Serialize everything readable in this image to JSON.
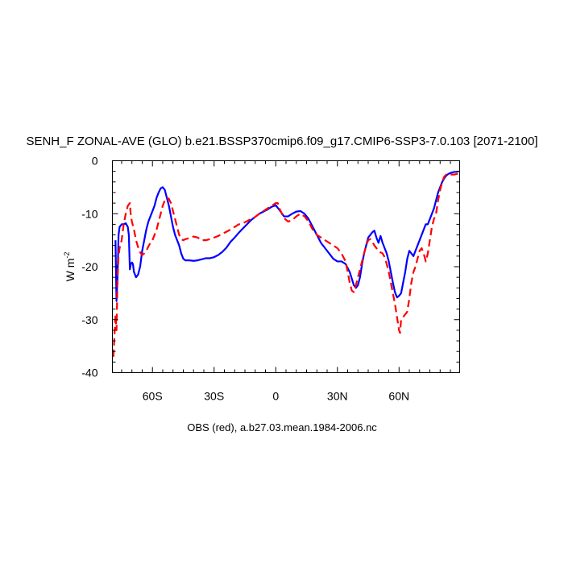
{
  "chart_data": {
    "type": "line",
    "title": "SENH_F ZONAL-AVE (GLO) b.e21.BSSP370cmip6.f09_g17.CMIP6-SSP3-7.0.103 [2071-2100]",
    "xlabel": "OBS (red), a.b27.03.mean.1984-2006.nc",
    "ylabel": "W m",
    "ylabel_sup": "-2",
    "xlim": [
      -90,
      90
    ],
    "ylim": [
      -40,
      0
    ],
    "xticks": [
      {
        "value": -60,
        "label": "60S"
      },
      {
        "value": -30,
        "label": "30S"
      },
      {
        "value": 0,
        "label": "0"
      },
      {
        "value": 30,
        "label": "30N"
      },
      {
        "value": 60,
        "label": "60N"
      }
    ],
    "yticks": [
      {
        "value": 0,
        "label": "0"
      },
      {
        "value": -10,
        "label": "-10"
      },
      {
        "value": -20,
        "label": "-20"
      },
      {
        "value": -30,
        "label": "-30"
      },
      {
        "value": -40,
        "label": "-40"
      }
    ],
    "series": [
      {
        "color": "#0000ff",
        "dash": "solid",
        "points": [
          [
            -78,
            -15
          ],
          [
            -77.5,
            -26.5
          ],
          [
            -77,
            -22
          ],
          [
            -76.5,
            -14
          ],
          [
            -76,
            -12.5
          ],
          [
            -75,
            -12
          ],
          [
            -74,
            -12
          ],
          [
            -73,
            -11.8
          ],
          [
            -72,
            -12.5
          ],
          [
            -71.5,
            -14
          ],
          [
            -71,
            -20.5
          ],
          [
            -70.5,
            -19.5
          ],
          [
            -70,
            -19.2
          ],
          [
            -69.5,
            -19.5
          ],
          [
            -69,
            -21
          ],
          [
            -68,
            -22
          ],
          [
            -67,
            -21.5
          ],
          [
            -66,
            -20
          ],
          [
            -65,
            -17
          ],
          [
            -64,
            -15
          ],
          [
            -63,
            -13
          ],
          [
            -62,
            -11.5
          ],
          [
            -61,
            -10.5
          ],
          [
            -60,
            -9.5
          ],
          [
            -59,
            -8.5
          ],
          [
            -58,
            -7
          ],
          [
            -57,
            -6
          ],
          [
            -56,
            -5.2
          ],
          [
            -55,
            -5
          ],
          [
            -54,
            -5.5
          ],
          [
            -53,
            -7
          ],
          [
            -52,
            -8.5
          ],
          [
            -51,
            -10.5
          ],
          [
            -50,
            -12.5
          ],
          [
            -49,
            -14
          ],
          [
            -48,
            -15
          ],
          [
            -47,
            -16
          ],
          [
            -46,
            -17.5
          ],
          [
            -45,
            -18.5
          ],
          [
            -44,
            -18.8
          ],
          [
            -42,
            -18.8
          ],
          [
            -40,
            -18.9
          ],
          [
            -38,
            -18.8
          ],
          [
            -36,
            -18.6
          ],
          [
            -34,
            -18.4
          ],
          [
            -32,
            -18.4
          ],
          [
            -30,
            -18.2
          ],
          [
            -28,
            -17.8
          ],
          [
            -26,
            -17.2
          ],
          [
            -24,
            -16.4
          ],
          [
            -22,
            -15.3
          ],
          [
            -20,
            -14.5
          ],
          [
            -18,
            -13.6
          ],
          [
            -16,
            -12.8
          ],
          [
            -14,
            -12
          ],
          [
            -12,
            -11.2
          ],
          [
            -10,
            -10.6
          ],
          [
            -8,
            -10
          ],
          [
            -6,
            -9.6
          ],
          [
            -4,
            -9.2
          ],
          [
            -2,
            -8.7
          ],
          [
            0,
            -8.4
          ],
          [
            2,
            -9.4
          ],
          [
            4,
            -10.5
          ],
          [
            6,
            -10.5
          ],
          [
            8,
            -10
          ],
          [
            10,
            -9.6
          ],
          [
            12,
            -9.5
          ],
          [
            14,
            -10
          ],
          [
            16,
            -11
          ],
          [
            18,
            -12.5
          ],
          [
            20,
            -14
          ],
          [
            22,
            -15.5
          ],
          [
            24,
            -16.5
          ],
          [
            26,
            -17.5
          ],
          [
            28,
            -18.5
          ],
          [
            30,
            -19
          ],
          [
            32,
            -19
          ],
          [
            34,
            -19.5
          ],
          [
            36,
            -21
          ],
          [
            38,
            -23.5
          ],
          [
            39,
            -24
          ],
          [
            40,
            -23.5
          ],
          [
            41,
            -22
          ],
          [
            42,
            -19.5
          ],
          [
            43,
            -17.5
          ],
          [
            44,
            -16
          ],
          [
            45,
            -14.5
          ],
          [
            46,
            -14
          ],
          [
            47,
            -13.5
          ],
          [
            48,
            -13.2
          ],
          [
            49,
            -14.5
          ],
          [
            50,
            -15.5
          ],
          [
            51,
            -14.2
          ],
          [
            52,
            -15.5
          ],
          [
            53,
            -16.5
          ],
          [
            54,
            -17.5
          ],
          [
            55,
            -19
          ],
          [
            56,
            -21
          ],
          [
            57,
            -23
          ],
          [
            58,
            -24.8
          ],
          [
            59,
            -25.8
          ],
          [
            60,
            -25.5
          ],
          [
            61,
            -25
          ],
          [
            62,
            -23
          ],
          [
            63,
            -21
          ],
          [
            64,
            -18.5
          ],
          [
            65,
            -17
          ],
          [
            66,
            -17.5
          ],
          [
            67,
            -18
          ],
          [
            68,
            -17
          ],
          [
            69,
            -16
          ],
          [
            70,
            -15
          ],
          [
            71,
            -14
          ],
          [
            72,
            -13
          ],
          [
            73,
            -12
          ],
          [
            74,
            -12
          ],
          [
            75,
            -11
          ],
          [
            76,
            -10
          ],
          [
            77,
            -9
          ],
          [
            78,
            -7.5
          ],
          [
            79,
            -6
          ],
          [
            80,
            -5
          ],
          [
            81,
            -4
          ],
          [
            82,
            -3.3
          ],
          [
            83,
            -2.8
          ],
          [
            84,
            -2.5
          ],
          [
            85,
            -2.3
          ],
          [
            86,
            -2.2
          ],
          [
            87,
            -2.1
          ],
          [
            88,
            -2.1
          ],
          [
            89,
            -2
          ]
        ]
      },
      {
        "color": "#ff0000",
        "dash": "dashed",
        "points": [
          [
            -79,
            -37
          ],
          [
            -78.5,
            -33
          ],
          [
            -78,
            -29
          ],
          [
            -77.5,
            -32
          ],
          [
            -77,
            -22
          ],
          [
            -76.5,
            -18
          ],
          [
            -76,
            -16.5
          ],
          [
            -75,
            -15
          ],
          [
            -74,
            -12
          ],
          [
            -73,
            -10
          ],
          [
            -72,
            -8.5
          ],
          [
            -71,
            -8
          ],
          [
            -70.5,
            -10.5
          ],
          [
            -70,
            -11.5
          ],
          [
            -69,
            -13
          ],
          [
            -68,
            -15
          ],
          [
            -67,
            -16.3
          ],
          [
            -66,
            -17.3
          ],
          [
            -65,
            -17.8
          ],
          [
            -64,
            -17.5
          ],
          [
            -63,
            -17
          ],
          [
            -62,
            -16.2
          ],
          [
            -61,
            -15.5
          ],
          [
            -60,
            -15
          ],
          [
            -59,
            -14
          ],
          [
            -58,
            -13
          ],
          [
            -57,
            -11.5
          ],
          [
            -56,
            -10
          ],
          [
            -55,
            -8.5
          ],
          [
            -54,
            -7.5
          ],
          [
            -53,
            -7
          ],
          [
            -52,
            -7.2
          ],
          [
            -51,
            -8
          ],
          [
            -50,
            -9.5
          ],
          [
            -49,
            -11
          ],
          [
            -48,
            -12.5
          ],
          [
            -47,
            -14
          ],
          [
            -46,
            -14.8
          ],
          [
            -45,
            -15
          ],
          [
            -44,
            -14.8
          ],
          [
            -42,
            -14.6
          ],
          [
            -40,
            -14.3
          ],
          [
            -38,
            -14.5
          ],
          [
            -36,
            -15
          ],
          [
            -34,
            -15
          ],
          [
            -32,
            -14.8
          ],
          [
            -30,
            -14.5
          ],
          [
            -28,
            -14.2
          ],
          [
            -26,
            -13.8
          ],
          [
            -24,
            -13.4
          ],
          [
            -22,
            -13
          ],
          [
            -20,
            -12.5
          ],
          [
            -18,
            -12
          ],
          [
            -16,
            -11.8
          ],
          [
            -14,
            -11.4
          ],
          [
            -12,
            -11
          ],
          [
            -10,
            -10.6
          ],
          [
            -8,
            -10
          ],
          [
            -6,
            -9.5
          ],
          [
            -4,
            -9
          ],
          [
            -2,
            -8.5
          ],
          [
            0,
            -8
          ],
          [
            1,
            -8
          ],
          [
            2,
            -9.2
          ],
          [
            4,
            -10.8
          ],
          [
            6,
            -11.5
          ],
          [
            8,
            -11.2
          ],
          [
            10,
            -10.5
          ],
          [
            12,
            -10
          ],
          [
            14,
            -10.5
          ],
          [
            16,
            -11.5
          ],
          [
            18,
            -13
          ],
          [
            20,
            -14
          ],
          [
            22,
            -14.5
          ],
          [
            24,
            -15
          ],
          [
            26,
            -15.5
          ],
          [
            28,
            -16
          ],
          [
            30,
            -16.5
          ],
          [
            32,
            -17.5
          ],
          [
            34,
            -19
          ],
          [
            35,
            -21
          ],
          [
            36,
            -23
          ],
          [
            37,
            -24.5
          ],
          [
            38,
            -24.8
          ],
          [
            39,
            -23.5
          ],
          [
            40,
            -22
          ],
          [
            41,
            -20.5
          ],
          [
            42,
            -19
          ],
          [
            43,
            -17.5
          ],
          [
            44,
            -16
          ],
          [
            45,
            -15
          ],
          [
            46,
            -14.8
          ],
          [
            47,
            -15.3
          ],
          [
            48,
            -16
          ],
          [
            50,
            -17
          ],
          [
            51,
            -17.3
          ],
          [
            52,
            -17.5
          ],
          [
            53,
            -18.2
          ],
          [
            54,
            -19.5
          ],
          [
            55,
            -21
          ],
          [
            56,
            -23
          ],
          [
            57,
            -25
          ],
          [
            58,
            -27
          ],
          [
            59,
            -29.5
          ],
          [
            60,
            -32
          ],
          [
            60.5,
            -32.5
          ],
          [
            61,
            -30
          ],
          [
            62,
            -29.5
          ],
          [
            63,
            -29
          ],
          [
            64,
            -28.5
          ],
          [
            65,
            -26
          ],
          [
            66,
            -23
          ],
          [
            67,
            -21
          ],
          [
            68,
            -20
          ],
          [
            69,
            -18.5
          ],
          [
            70,
            -17
          ],
          [
            71,
            -16.5
          ],
          [
            72,
            -17.5
          ],
          [
            73,
            -19
          ],
          [
            74,
            -17.5
          ],
          [
            75,
            -15
          ],
          [
            76,
            -12.5
          ],
          [
            77,
            -11
          ],
          [
            78,
            -10
          ],
          [
            79,
            -7.5
          ],
          [
            80,
            -5.5
          ],
          [
            81,
            -4
          ],
          [
            82,
            -3
          ],
          [
            83,
            -2.6
          ],
          [
            84,
            -2.5
          ],
          [
            85,
            -2.6
          ],
          [
            86,
            -2.6
          ],
          [
            87,
            -2.6
          ],
          [
            88,
            -2.5
          ],
          [
            89,
            -2.5
          ]
        ]
      }
    ]
  }
}
